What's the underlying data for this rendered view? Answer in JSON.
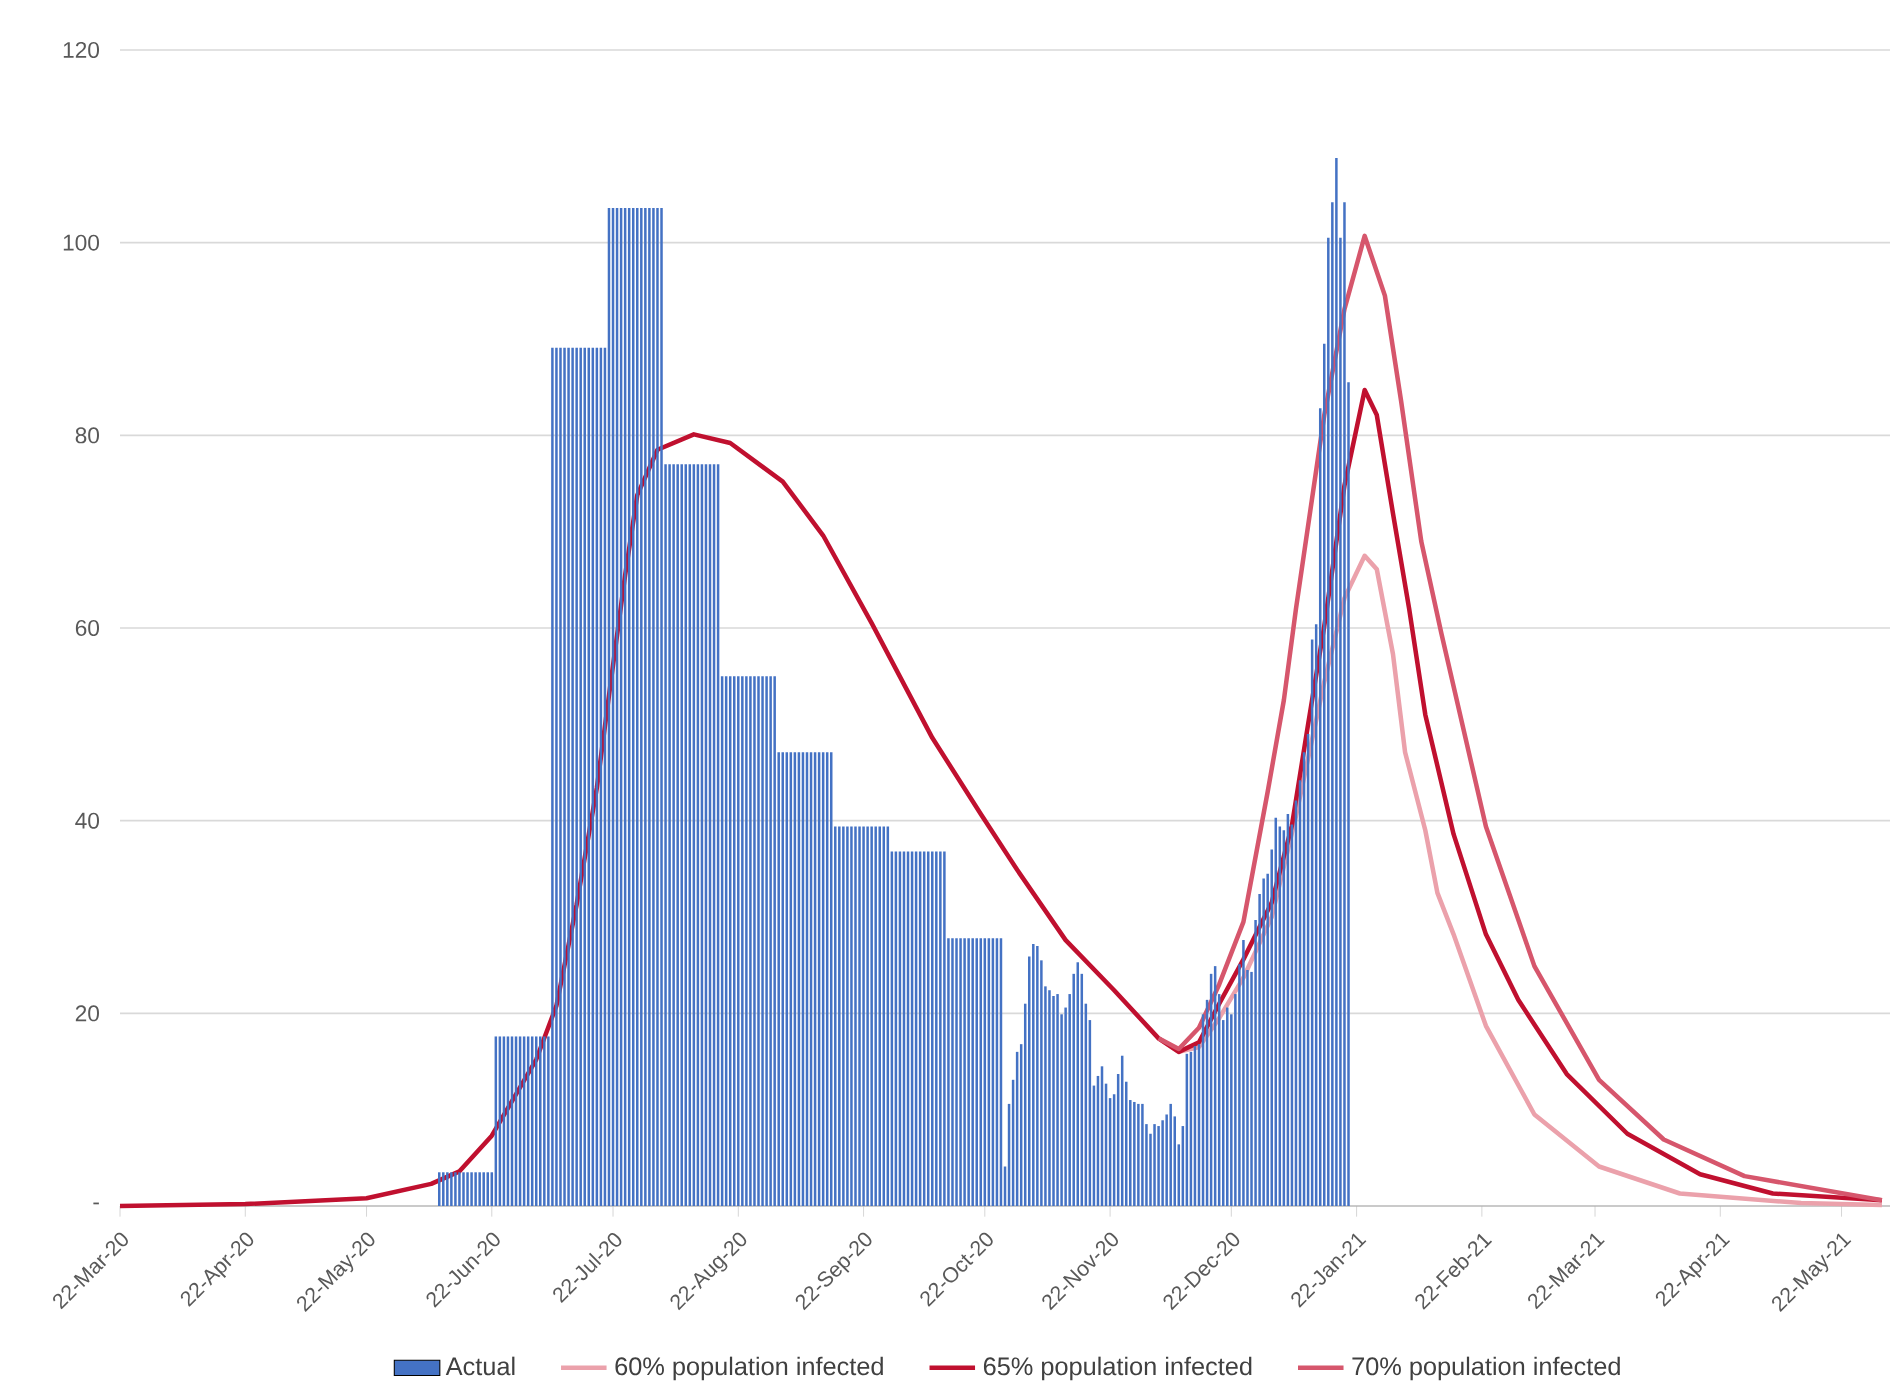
{
  "chart_data": {
    "type": "bar",
    "xlim": [
      "2020-03-22",
      "2021-06-03"
    ],
    "xticks": [
      {
        "value": "2020-03-22",
        "label": "22-Mar-20"
      },
      {
        "value": "2020-04-22",
        "label": "22-Apr-20"
      },
      {
        "value": "2020-05-22",
        "label": "22-May-20"
      },
      {
        "value": "2020-06-22",
        "label": "22-Jun-20"
      },
      {
        "value": "2020-07-22",
        "label": "22-Jul-20"
      },
      {
        "value": "2020-08-22",
        "label": "22-Aug-20"
      },
      {
        "value": "2020-09-22",
        "label": "22-Sep-20"
      },
      {
        "value": "2020-10-22",
        "label": "22-Oct-20"
      },
      {
        "value": "2020-11-22",
        "label": "22-Nov-20"
      },
      {
        "value": "2020-12-22",
        "label": "22-Dec-20"
      },
      {
        "value": "2021-01-22",
        "label": "22-Jan-21"
      },
      {
        "value": "2021-02-22",
        "label": "22-Feb-21"
      },
      {
        "value": "2021-03-22",
        "label": "22-Mar-21"
      },
      {
        "value": "2021-04-22",
        "label": "22-Apr-21"
      },
      {
        "value": "2021-05-22",
        "label": "22-May-21"
      }
    ],
    "ylim": [
      0,
      120
    ],
    "yticks": [
      {
        "value": 0,
        "label": "-"
      },
      20,
      40,
      60,
      80,
      100,
      120
    ],
    "grid": "y",
    "legend": "bottom",
    "series": [
      {
        "name": "Actual",
        "color": "#4472c4",
        "x": [
          "2020-06-09",
          "2020-06-10",
          "2020-06-11",
          "2020-06-12",
          "2020-06-13",
          "2020-06-14",
          "2020-06-15",
          "2020-06-16",
          "2020-06-17",
          "2020-06-18",
          "2020-06-19",
          "2020-06-20",
          "2020-06-21",
          "2020-06-22",
          "2020-06-23",
          "2020-06-24",
          "2020-06-25",
          "2020-06-26",
          "2020-06-27",
          "2020-06-28",
          "2020-06-29",
          "2020-06-30",
          "2020-07-01",
          "2020-07-02",
          "2020-07-03",
          "2020-07-04",
          "2020-07-05",
          "2020-07-06",
          "2020-07-07",
          "2020-07-08",
          "2020-07-09",
          "2020-07-10",
          "2020-07-11",
          "2020-07-12",
          "2020-07-13",
          "2020-07-14",
          "2020-07-15",
          "2020-07-16",
          "2020-07-17",
          "2020-07-18",
          "2020-07-19",
          "2020-07-20",
          "2020-07-21",
          "2020-07-22",
          "2020-07-23",
          "2020-07-24",
          "2020-07-25",
          "2020-07-26",
          "2020-07-27",
          "2020-07-28",
          "2020-07-29",
          "2020-07-30",
          "2020-07-31",
          "2020-08-01",
          "2020-08-02",
          "2020-08-03",
          "2020-08-04",
          "2020-08-05",
          "2020-08-06",
          "2020-08-07",
          "2020-08-08",
          "2020-08-09",
          "2020-08-10",
          "2020-08-11",
          "2020-08-12",
          "2020-08-13",
          "2020-08-14",
          "2020-08-15",
          "2020-08-16",
          "2020-08-17",
          "2020-08-18",
          "2020-08-19",
          "2020-08-20",
          "2020-08-21",
          "2020-08-22",
          "2020-08-23",
          "2020-08-24",
          "2020-08-25",
          "2020-08-26",
          "2020-08-27",
          "2020-08-28",
          "2020-08-29",
          "2020-08-30",
          "2020-08-31",
          "2020-09-01",
          "2020-09-02",
          "2020-09-03",
          "2020-09-04",
          "2020-09-05",
          "2020-09-06",
          "2020-09-07",
          "2020-09-08",
          "2020-09-09",
          "2020-09-10",
          "2020-09-11",
          "2020-09-12",
          "2020-09-13",
          "2020-09-14",
          "2020-09-15",
          "2020-09-16",
          "2020-09-17",
          "2020-09-18",
          "2020-09-19",
          "2020-09-20",
          "2020-09-21",
          "2020-09-22",
          "2020-09-23",
          "2020-09-24",
          "2020-09-25",
          "2020-09-26",
          "2020-09-27",
          "2020-09-28",
          "2020-09-29",
          "2020-09-30",
          "2020-10-01",
          "2020-10-02",
          "2020-10-03",
          "2020-10-04",
          "2020-10-05",
          "2020-10-06",
          "2020-10-07",
          "2020-10-08",
          "2020-10-09",
          "2020-10-10",
          "2020-10-11",
          "2020-10-12",
          "2020-10-13",
          "2020-10-14",
          "2020-10-15",
          "2020-10-16",
          "2020-10-17",
          "2020-10-18",
          "2020-10-19",
          "2020-10-20",
          "2020-10-21",
          "2020-10-22",
          "2020-10-23",
          "2020-10-24",
          "2020-10-25",
          "2020-10-26",
          "2020-10-27",
          "2020-10-28",
          "2020-10-29",
          "2020-10-30",
          "2020-10-31",
          "2020-11-01",
          "2020-11-02",
          "2020-11-03",
          "2020-11-04",
          "2020-11-05",
          "2020-11-06",
          "2020-11-07",
          "2020-11-08",
          "2020-11-09",
          "2020-11-10",
          "2020-11-11",
          "2020-11-12",
          "2020-11-13",
          "2020-11-14",
          "2020-11-15",
          "2020-11-16",
          "2020-11-17",
          "2020-11-18",
          "2020-11-19",
          "2020-11-20",
          "2020-11-21",
          "2020-11-22",
          "2020-11-23",
          "2020-11-24",
          "2020-11-25",
          "2020-11-26",
          "2020-11-27",
          "2020-11-28",
          "2020-11-29",
          "2020-11-30",
          "2020-12-01",
          "2020-12-02",
          "2020-12-03",
          "2020-12-04",
          "2020-12-05",
          "2020-12-06",
          "2020-12-07",
          "2020-12-08",
          "2020-12-09",
          "2020-12-10",
          "2020-12-11",
          "2020-12-12",
          "2020-12-13",
          "2020-12-14",
          "2020-12-15",
          "2020-12-16",
          "2020-12-17",
          "2020-12-18",
          "2020-12-19",
          "2020-12-20",
          "2020-12-21",
          "2020-12-22",
          "2020-12-23",
          "2020-12-24",
          "2020-12-25",
          "2020-12-26",
          "2020-12-27",
          "2020-12-28",
          "2020-12-29",
          "2020-12-30",
          "2020-12-31",
          "2021-01-01",
          "2021-01-02",
          "2021-01-03",
          "2021-01-04",
          "2021-01-05",
          "2021-01-06",
          "2021-01-07",
          "2021-01-08",
          "2021-01-09",
          "2021-01-10",
          "2021-01-11",
          "2021-01-12",
          "2021-01-13",
          "2021-01-14",
          "2021-01-15",
          "2021-01-16",
          "2021-01-17",
          "2021-01-18",
          "2021-01-19",
          "2021-01-20"
        ],
        "values": [
          3.5,
          3.5,
          3.5,
          3.5,
          3.5,
          3.5,
          3.5,
          3.5,
          3.5,
          3.5,
          3.5,
          3.5,
          3.5,
          3.5,
          17.6,
          17.6,
          17.6,
          17.6,
          17.6,
          17.6,
          17.6,
          17.6,
          17.6,
          17.6,
          17.6,
          17.6,
          17.6,
          17.6,
          89.1,
          89.1,
          89.1,
          89.1,
          89.1,
          89.1,
          89.1,
          89.1,
          89.1,
          89.1,
          89.1,
          89.1,
          89.1,
          89.1,
          103.6,
          103.6,
          103.6,
          103.6,
          103.6,
          103.6,
          103.6,
          103.6,
          103.6,
          103.6,
          103.6,
          103.6,
          103.6,
          103.6,
          77.0,
          77.0,
          77.0,
          77.0,
          77.0,
          77.0,
          77.0,
          77.0,
          77.0,
          77.0,
          77.0,
          77.0,
          77.0,
          77.0,
          55.0,
          55.0,
          55.0,
          55.0,
          55.0,
          55.0,
          55.0,
          55.0,
          55.0,
          55.0,
          55.0,
          55.0,
          55.0,
          55.0,
          47.1,
          47.1,
          47.1,
          47.1,
          47.1,
          47.1,
          47.1,
          47.1,
          47.1,
          47.1,
          47.1,
          47.1,
          47.1,
          47.1,
          39.4,
          39.4,
          39.4,
          39.4,
          39.4,
          39.4,
          39.4,
          39.4,
          39.4,
          39.4,
          39.4,
          39.4,
          39.4,
          39.4,
          36.8,
          36.8,
          36.8,
          36.8,
          36.8,
          36.8,
          36.8,
          36.8,
          36.8,
          36.8,
          36.8,
          36.8,
          36.8,
          36.8,
          27.8,
          27.8,
          27.8,
          27.8,
          27.8,
          27.8,
          27.8,
          27.8,
          27.8,
          27.8,
          27.8,
          27.8,
          27.8,
          27.8,
          4.1,
          10.6,
          13.1,
          16.0,
          16.8,
          21.0,
          25.9,
          27.2,
          27.0,
          25.5,
          22.8,
          22.4,
          21.8,
          22.0,
          19.9,
          20.6,
          22.0,
          24.1,
          25.3,
          24.1,
          21.0,
          19.3,
          12.5,
          13.5,
          14.5,
          12.7,
          11.2,
          11.6,
          13.7,
          15.6,
          12.9,
          11.0,
          10.8,
          10.6,
          10.6,
          8.5,
          7.5,
          8.5,
          8.3,
          8.9,
          9.5,
          10.6,
          9.3,
          6.4,
          8.3,
          15.8,
          16.0,
          16.6,
          16.8,
          19.9,
          21.4,
          24.1,
          24.9,
          22.0,
          19.3,
          20.6,
          19.9,
          22.0,
          25.1,
          27.6,
          24.5,
          24.3,
          29.7,
          32.4,
          34.0,
          34.5,
          37.0,
          40.3,
          39.4,
          39.0,
          40.7,
          39.6,
          42.1,
          44.2,
          47.1,
          49.0,
          58.8,
          60.4,
          82.8,
          89.5,
          100.5,
          104.2,
          108.8,
          100.5,
          104.2,
          85.5
        ]
      },
      {
        "name": "60% population infected",
        "type": "line",
        "color": "#eba1ab",
        "x": [
          "2020-12-04",
          "2020-12-09",
          "2020-12-14",
          "2020-12-19",
          "2020-12-25",
          "2021-01-01",
          "2021-01-07",
          "2021-01-14",
          "2021-01-19",
          "2021-01-24",
          "2021-01-27",
          "2021-01-31",
          "2021-02-03",
          "2021-02-08",
          "2021-02-11",
          "2021-02-15",
          "2021-02-23",
          "2021-03-07",
          "2021-03-23",
          "2021-04-12",
          "2021-05-12",
          "2021-06-01"
        ],
        "values": [
          17.4,
          16.0,
          16.5,
          19.5,
          23.7,
          30.0,
          40.5,
          54.4,
          63.1,
          67.5,
          66.1,
          57.3,
          47.1,
          39.0,
          32.5,
          28.2,
          18.7,
          9.5,
          4.1,
          1.3,
          0.3,
          0.1
        ]
      },
      {
        "name": "65% population infected",
        "type": "line",
        "color": "#c0102f",
        "x": [
          "2020-03-22",
          "2020-04-22",
          "2020-05-22",
          "2020-06-07",
          "2020-06-14",
          "2020-06-22",
          "2020-07-03",
          "2020-07-08",
          "2020-07-13",
          "2020-07-18",
          "2020-07-21",
          "2020-07-25",
          "2020-07-28",
          "2020-08-02",
          "2020-08-11",
          "2020-08-20",
          "2020-09-02",
          "2020-09-12",
          "2020-09-24",
          "2020-10-09",
          "2020-10-21",
          "2020-10-30",
          "2020-11-11",
          "2020-11-23",
          "2020-12-04",
          "2020-12-09",
          "2020-12-14",
          "2020-12-19",
          "2020-12-25",
          "2021-01-01",
          "2021-01-06",
          "2021-01-10",
          "2021-01-14",
          "2021-01-19",
          "2021-01-24",
          "2021-01-27",
          "2021-01-31",
          "2021-02-04",
          "2021-02-08",
          "2021-02-15",
          "2021-02-23",
          "2021-03-03",
          "2021-03-15",
          "2021-03-30",
          "2021-04-17",
          "2021-05-05",
          "2021-06-01"
        ],
        "values": [
          0,
          0.2,
          0.8,
          2.3,
          3.6,
          7.3,
          15.2,
          20.8,
          31.3,
          43.4,
          53.0,
          65.5,
          73.8,
          78.5,
          80.1,
          79.2,
          75.2,
          69.6,
          60.5,
          48.6,
          40.7,
          34.9,
          27.6,
          22.4,
          17.4,
          16.0,
          17.0,
          21.0,
          25.6,
          31.5,
          39.5,
          50.0,
          60.2,
          74.8,
          84.7,
          82.1,
          71.9,
          62.0,
          51.0,
          38.6,
          28.2,
          21.4,
          13.7,
          7.5,
          3.3,
          1.3,
          0.6
        ]
      },
      {
        "name": "70% population infected",
        "type": "line",
        "color": "#d6566c",
        "x": [
          "2020-12-04",
          "2020-12-09",
          "2020-12-14",
          "2020-12-19",
          "2020-12-25",
          "2020-12-31",
          "2021-01-04",
          "2021-01-07",
          "2021-01-14",
          "2021-01-19",
          "2021-01-24",
          "2021-01-29",
          "2021-02-02",
          "2021-02-07",
          "2021-02-12",
          "2021-02-23",
          "2021-03-07",
          "2021-03-23",
          "2021-04-08",
          "2021-04-28",
          "2021-06-01"
        ],
        "values": [
          17.4,
          16.3,
          18.5,
          23.0,
          29.5,
          43.0,
          52.5,
          62.0,
          82.1,
          93.1,
          100.7,
          94.5,
          83.6,
          69.0,
          59.4,
          39.4,
          24.9,
          13.1,
          6.9,
          3.1,
          0.6
        ]
      }
    ]
  }
}
